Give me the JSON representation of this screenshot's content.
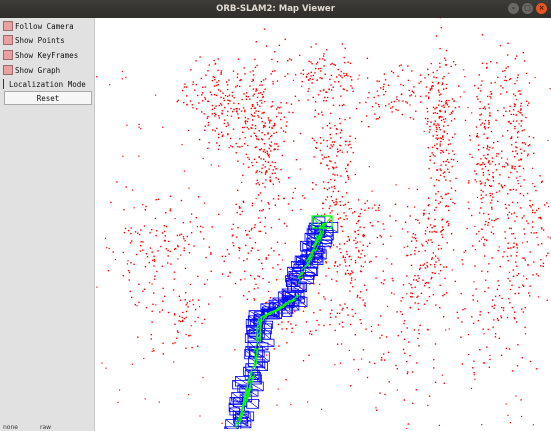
{
  "window": {
    "title": "ORB-SLAM2: Map Viewer",
    "buttons": [
      "–",
      "□",
      "×"
    ]
  },
  "panel": {
    "options": [
      {
        "label": "Follow Camera",
        "checked": true
      },
      {
        "label": "Show Points",
        "checked": true
      },
      {
        "label": "Show KeyFrames",
        "checked": true
      },
      {
        "label": "Show Graph",
        "checked": true
      },
      {
        "label": "Localization Mode",
        "checked": false
      }
    ],
    "reset_label": "Reset"
  },
  "map": {
    "point_color": "#ff0000",
    "keyframe_color": "#0000ff",
    "graph_color": "#00ff00",
    "camera_color": "#00ff00"
  },
  "bottom_strip": [
    "none",
    "raw"
  ]
}
